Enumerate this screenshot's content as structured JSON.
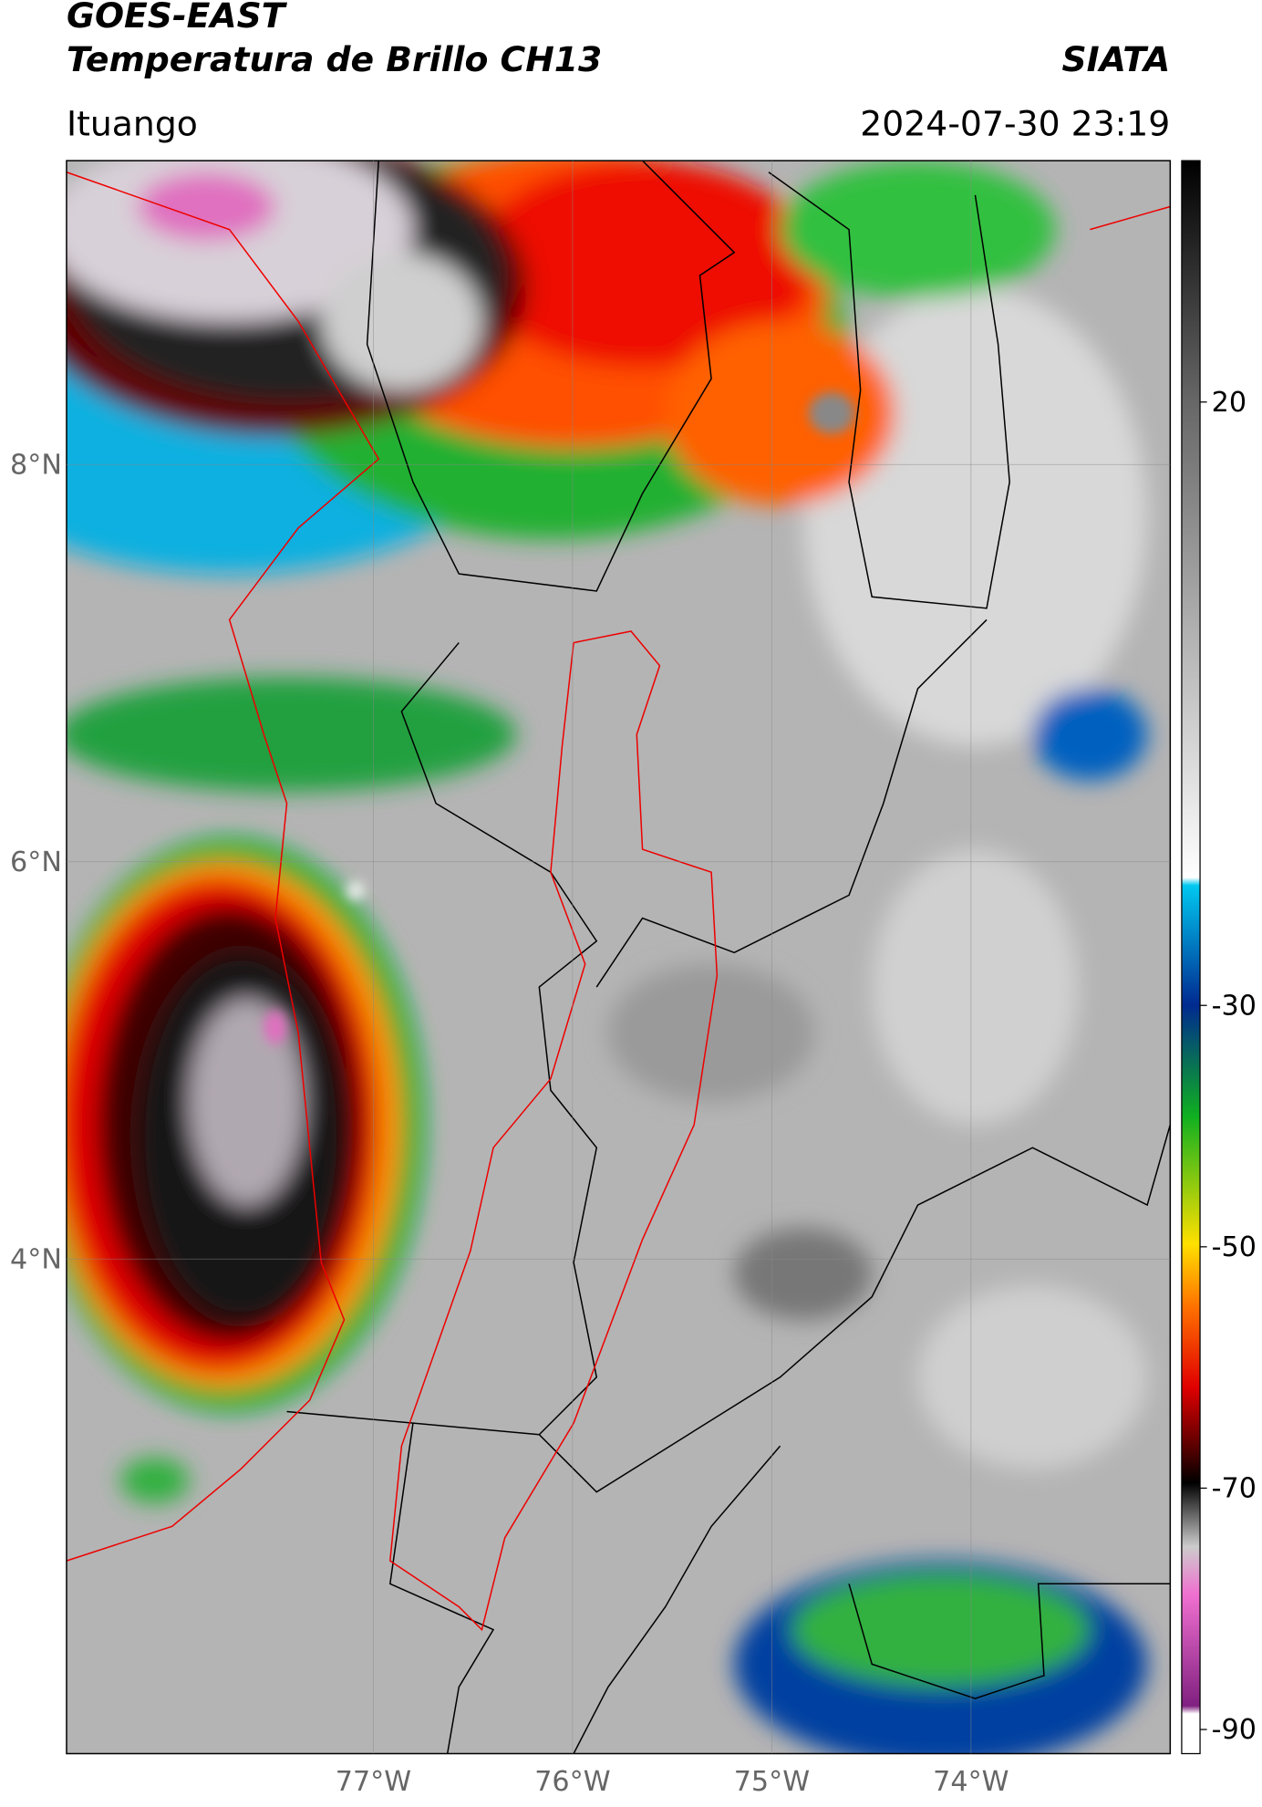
{
  "header": {
    "title": "GOES-EAST",
    "subtitle": "Temperatura de Brillo CH13",
    "source": "SIATA",
    "location": "Ituango",
    "datetime": "2024-07-30 23:19"
  },
  "map": {
    "lonlim": [
      -78.54,
      -73.0
    ],
    "latlim": [
      1.51,
      9.53
    ],
    "lat_ticks": [
      {
        "value": 8,
        "label": "8°N"
      },
      {
        "value": 6,
        "label": "6°N"
      },
      {
        "value": 4,
        "label": "4°N"
      }
    ],
    "lon_ticks": [
      {
        "value": -77,
        "label": "77°W"
      },
      {
        "value": -76,
        "label": "76°W"
      },
      {
        "value": -75,
        "label": "75°W"
      },
      {
        "value": -74,
        "label": "74°W"
      }
    ]
  },
  "colorbar": {
    "lim": [
      -92,
      40
    ],
    "ticks": [
      20,
      -30,
      -50,
      -70,
      -90
    ]
  }
}
